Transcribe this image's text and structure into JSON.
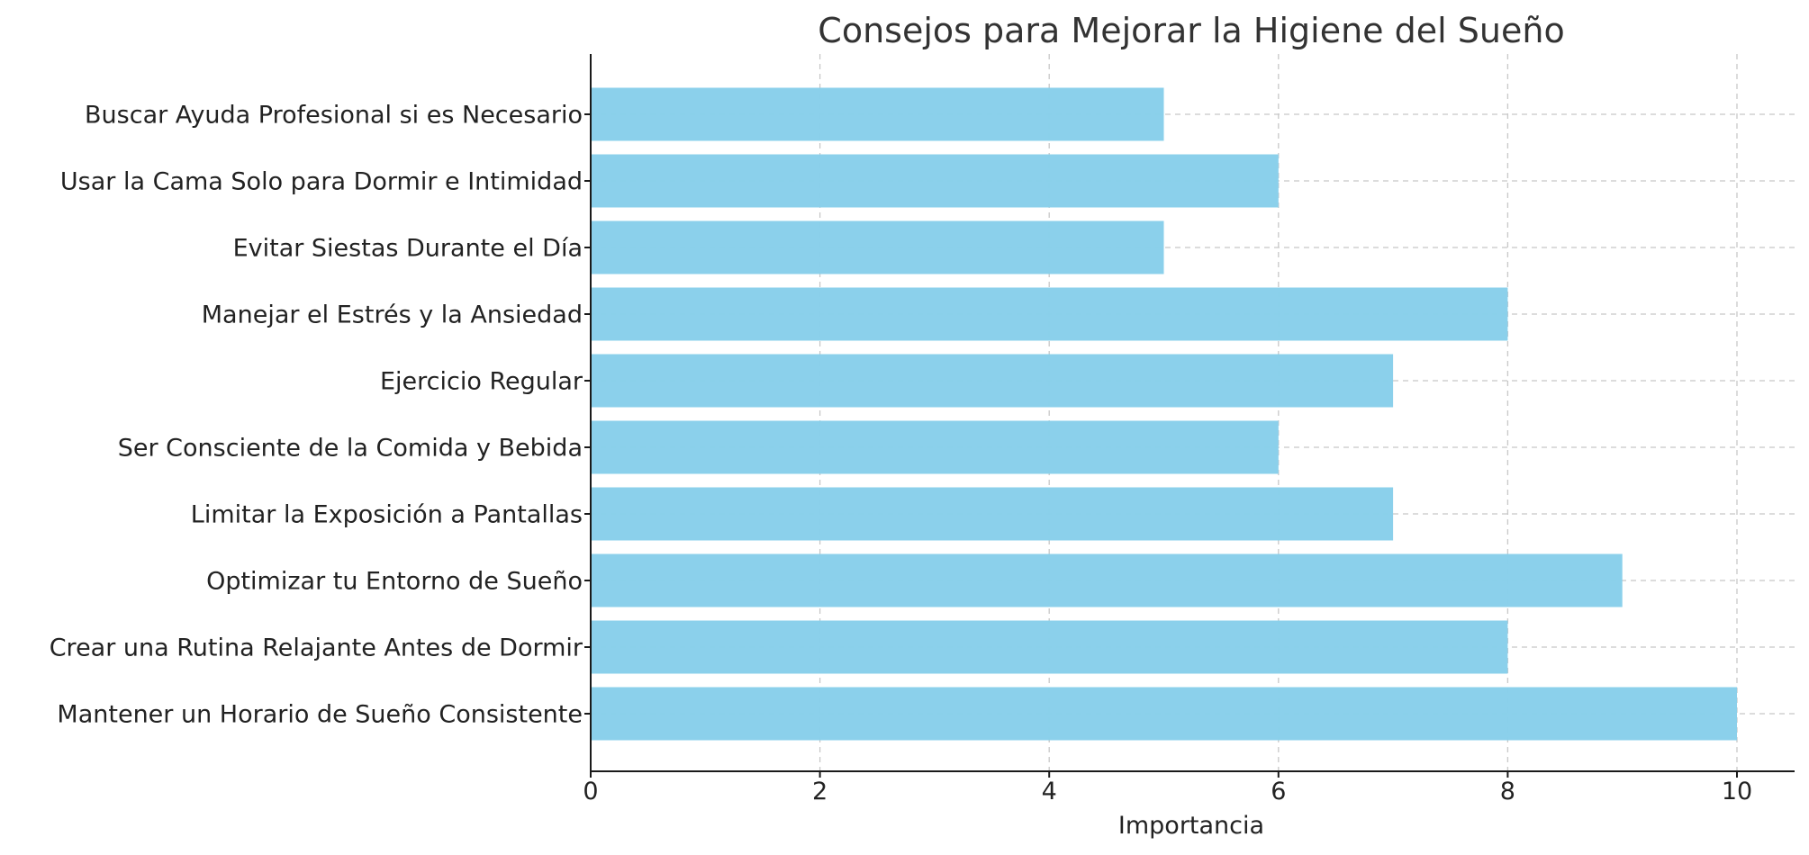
{
  "chart_data": {
    "type": "bar",
    "orientation": "horizontal",
    "title": "Consejos para Mejorar la Higiene del Sueño",
    "xlabel": "Importancia",
    "ylabel": "",
    "xlim": [
      0,
      10.5
    ],
    "xticks": [
      0,
      2,
      4,
      6,
      8,
      10
    ],
    "grid": true,
    "bar_color": "#89CFEB",
    "categories": [
      "Mantener un Horario de Sueño Consistente",
      "Crear una Rutina Relajante Antes de Dormir",
      "Optimizar tu Entorno de Sueño",
      "Limitar la Exposición a Pantallas",
      "Ser Consciente de la Comida y Bebida",
      "Ejercicio Regular",
      "Manejar el Estrés y la Ansiedad",
      "Evitar Siestas Durante el Día",
      "Usar la Cama Solo para Dormir e Intimidad",
      "Buscar Ayuda Profesional si es Necesario"
    ],
    "values": [
      10,
      8,
      9,
      7,
      6,
      7,
      8,
      5,
      6,
      5
    ]
  }
}
